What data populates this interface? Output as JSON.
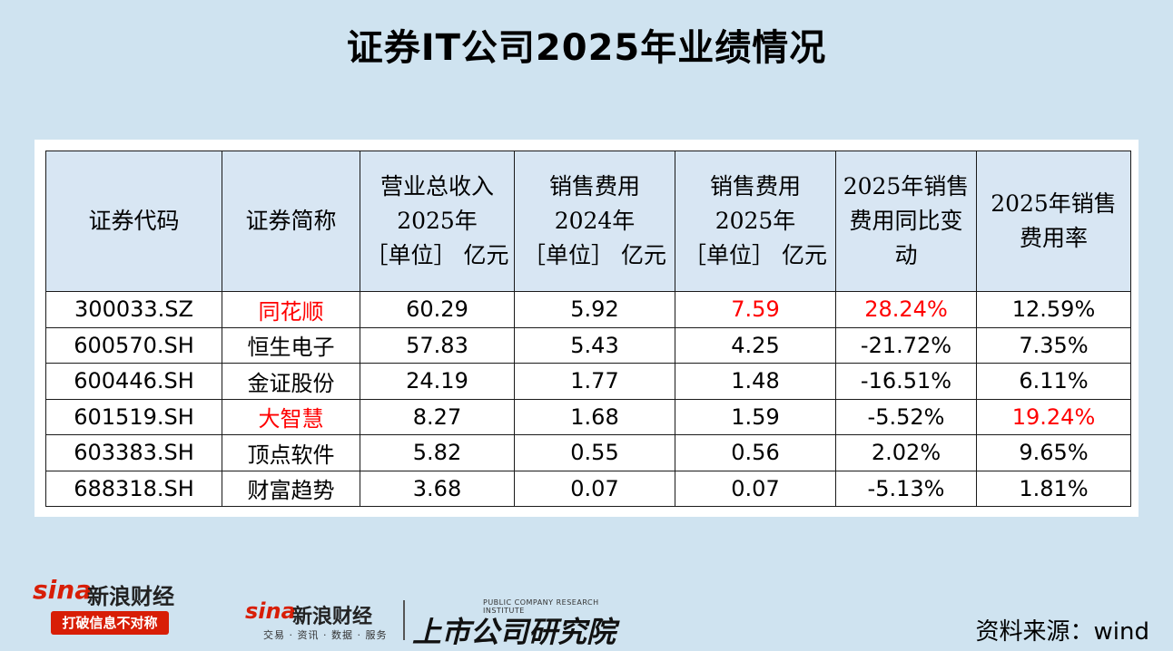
{
  "title": "证券IT公司2025年业绩情况",
  "table": {
    "headers": [
      {
        "lines": [
          "证券代码"
        ]
      },
      {
        "lines": [
          "证券简称"
        ]
      },
      {
        "lines": [
          "营业总收入",
          "2025年",
          "［单位］ 亿元"
        ]
      },
      {
        "lines": [
          "销售费用",
          "2024年",
          "［单位］ 亿元"
        ]
      },
      {
        "lines": [
          "销售费用",
          "2025年",
          "［单位］ 亿元"
        ]
      },
      {
        "lines": [
          "2025年销售",
          "费用同比变",
          "动"
        ]
      },
      {
        "lines": [
          "2025年销售",
          "费用率"
        ]
      }
    ],
    "rows": [
      {
        "cells": [
          "300033.SZ",
          "同花顺",
          "60.29",
          "5.92",
          "7.59",
          "28.24%",
          "12.59%"
        ],
        "red": [
          false,
          true,
          false,
          false,
          true,
          true,
          false
        ]
      },
      {
        "cells": [
          "600570.SH",
          "恒生电子",
          "57.83",
          "5.43",
          "4.25",
          "-21.72%",
          "7.35%"
        ],
        "red": [
          false,
          false,
          false,
          false,
          false,
          false,
          false
        ]
      },
      {
        "cells": [
          "600446.SH",
          "金证股份",
          "24.19",
          "1.77",
          "1.48",
          "-16.51%",
          "6.11%"
        ],
        "red": [
          false,
          false,
          false,
          false,
          false,
          false,
          false
        ]
      },
      {
        "cells": [
          "601519.SH",
          "大智慧",
          "8.27",
          "1.68",
          "1.59",
          "-5.52%",
          "19.24%"
        ],
        "red": [
          false,
          true,
          false,
          false,
          false,
          false,
          true
        ]
      },
      {
        "cells": [
          "603383.SH",
          "顶点软件",
          "5.82",
          "0.55",
          "0.56",
          "2.02%",
          "9.65%"
        ],
        "red": [
          false,
          false,
          false,
          false,
          false,
          false,
          false
        ]
      },
      {
        "cells": [
          "688318.SH",
          "财富趋势",
          "3.68",
          "0.07",
          "0.07",
          "-5.13%",
          "1.81%"
        ],
        "red": [
          false,
          false,
          false,
          false,
          false,
          false,
          false
        ]
      }
    ]
  },
  "footer": {
    "source": "资料来源：wind",
    "logo_left": {
      "brand": "sina",
      "brand_cn": "新浪财经",
      "slogan": "打破信息不对称"
    },
    "logo_right": {
      "brand": "sina",
      "brand_cn": "新浪财经",
      "small": "交易 · 资讯 · 数据 · 服务",
      "inst_cn": "上市公司研究院",
      "inst_en": "PUBLIC COMPANY RESEARCH INSTITUTE"
    }
  },
  "colors": {
    "background": "#cfe3f0",
    "header_fill": "#d8e6f3",
    "highlight": "#ff0000",
    "brand_red": "#d81e06"
  }
}
